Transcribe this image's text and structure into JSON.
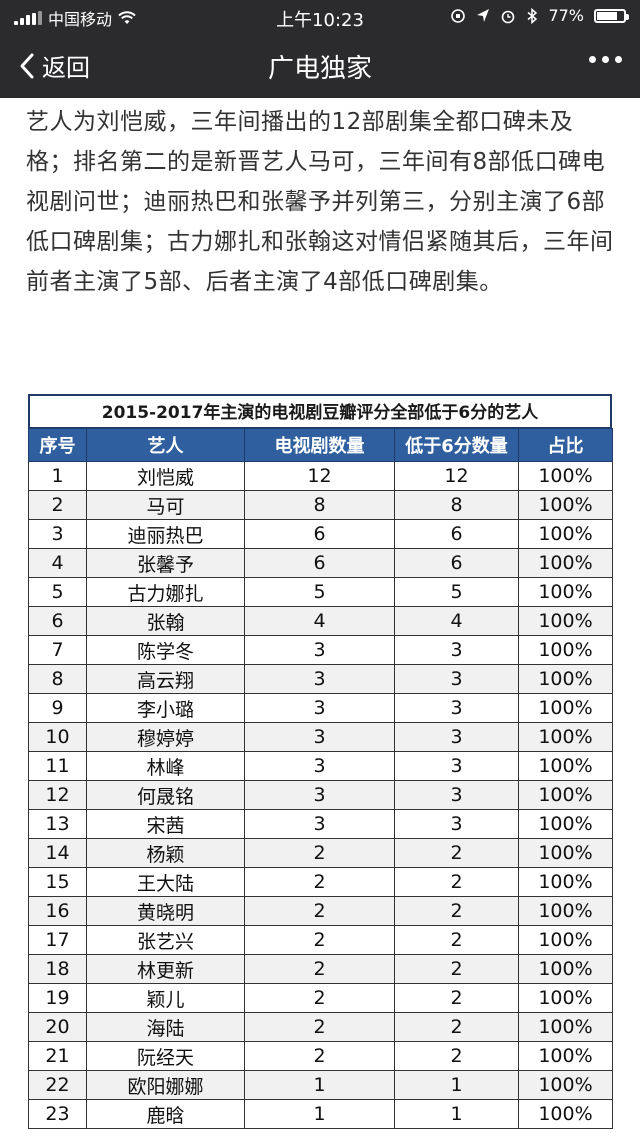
{
  "status": {
    "carrier": "中国移动",
    "time": "上午10:23",
    "battery": "77%",
    "battery_level": 0.77
  },
  "nav": {
    "back_label": "返回",
    "title": "广电独家"
  },
  "article": {
    "text": "艺人为刘恺威，三年间播出的12部剧集全都口碑未及格；排名第二的是新晋艺人马可，三年间有8部低口碑电视剧问世；迪丽热巴和张馨予并列第三，分别主演了6部低口碑剧集；古力娜扎和张翰这对情侣紧随其后，三年间前者主演了5部、后者主演了4部低口碑剧集。"
  },
  "table": {
    "title": "2015-2017年主演的电视剧豆瓣评分全部低于6分的艺人",
    "headers": [
      "序号",
      "艺人",
      "电视剧数量",
      "低于6分数量",
      "占比"
    ],
    "rows": [
      [
        "1",
        "刘恺威",
        "12",
        "12",
        "100%"
      ],
      [
        "2",
        "马可",
        "8",
        "8",
        "100%"
      ],
      [
        "3",
        "迪丽热巴",
        "6",
        "6",
        "100%"
      ],
      [
        "4",
        "张馨予",
        "6",
        "6",
        "100%"
      ],
      [
        "5",
        "古力娜扎",
        "5",
        "5",
        "100%"
      ],
      [
        "6",
        "张翰",
        "4",
        "4",
        "100%"
      ],
      [
        "7",
        "陈学冬",
        "3",
        "3",
        "100%"
      ],
      [
        "8",
        "高云翔",
        "3",
        "3",
        "100%"
      ],
      [
        "9",
        "李小璐",
        "3",
        "3",
        "100%"
      ],
      [
        "10",
        "穆婷婷",
        "3",
        "3",
        "100%"
      ],
      [
        "11",
        "林峰",
        "3",
        "3",
        "100%"
      ],
      [
        "12",
        "何晟铭",
        "3",
        "3",
        "100%"
      ],
      [
        "13",
        "宋茜",
        "3",
        "3",
        "100%"
      ],
      [
        "14",
        "杨颖",
        "2",
        "2",
        "100%"
      ],
      [
        "15",
        "王大陆",
        "2",
        "2",
        "100%"
      ],
      [
        "16",
        "黄晓明",
        "2",
        "2",
        "100%"
      ],
      [
        "17",
        "张艺兴",
        "2",
        "2",
        "100%"
      ],
      [
        "18",
        "林更新",
        "2",
        "2",
        "100%"
      ],
      [
        "19",
        "颖儿",
        "2",
        "2",
        "100%"
      ],
      [
        "20",
        "海陆",
        "2",
        "2",
        "100%"
      ],
      [
        "21",
        "阮经天",
        "2",
        "2",
        "100%"
      ],
      [
        "22",
        "欧阳娜娜",
        "1",
        "1",
        "100%"
      ],
      [
        "23",
        "鹿晗",
        "1",
        "1",
        "100%"
      ]
    ]
  },
  "icons": {
    "back": "chevron-left-icon",
    "more": "more-dots-icon",
    "wifi": "wifi-icon",
    "signal": "signal-icon",
    "battery": "battery-icon"
  }
}
